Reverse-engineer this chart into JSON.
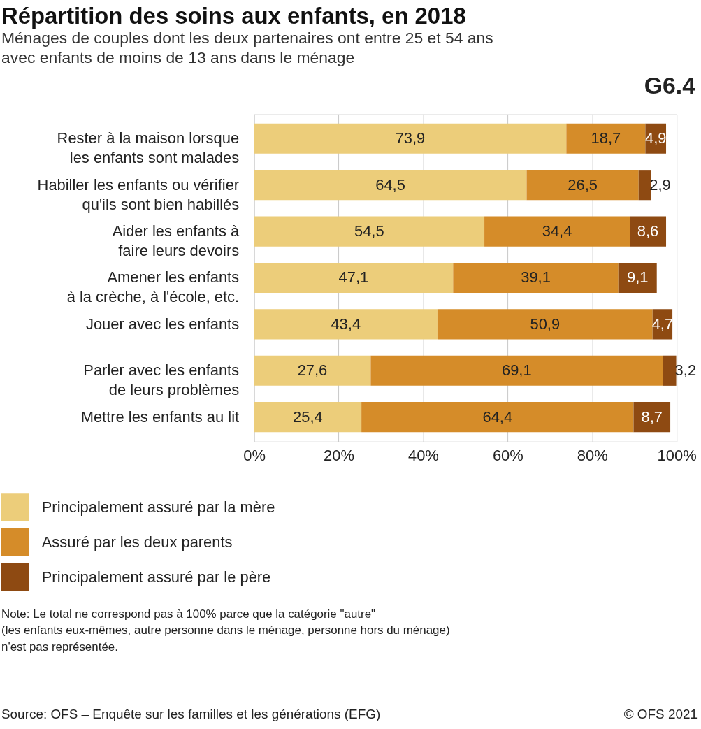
{
  "chart_data": {
    "type": "bar",
    "orientation": "horizontal",
    "stacked": true,
    "title": "Répartition des soins aux enfants, en 2018",
    "subtitle": "Ménages de couples dont les deux partenaires ont entre 25 et 54 ans\navec enfants de moins de 13 ans dans le ménage",
    "categories": [
      "Rester à la maison lorsque\nles enfants sont malades",
      "Habiller les enfants ou vérifier\nqu'ils sont bien habillés",
      "Aider les enfants à\nfaire leurs devoirs",
      "Amener les enfants\nà la crèche, à l'école, etc.",
      "Jouer avec les enfants",
      "Parler avec les enfants\nde leurs problèmes",
      "Mettre les enfants au lit"
    ],
    "series": [
      {
        "name": "Principalement assuré par la mère",
        "color": "#eccd7a",
        "values": [
          73.9,
          64.5,
          54.5,
          47.1,
          43.4,
          27.6,
          25.4
        ],
        "value_labels": [
          "73,9",
          "64,5",
          "54,5",
          "47,1",
          "43,4",
          "27,6",
          "25,4"
        ]
      },
      {
        "name": "Assuré par les deux parents",
        "color": "#d58c29",
        "values": [
          18.7,
          26.5,
          34.4,
          39.1,
          50.9,
          69.1,
          64.4
        ],
        "value_labels": [
          "18,7",
          "26,5",
          "34,4",
          "39,1",
          "50,9",
          "69,1",
          "64,4"
        ]
      },
      {
        "name": "Principalement assuré par le père",
        "color": "#8e4a12",
        "values": [
          4.9,
          2.9,
          8.6,
          9.1,
          4.7,
          3.2,
          8.7
        ],
        "value_labels": [
          "4,9",
          "2,9",
          "8,6",
          "9,1",
          "4,7",
          "3,2",
          "8,7"
        ]
      }
    ],
    "xlim": [
      0,
      100
    ],
    "xticks": [
      {
        "value": 0,
        "label": "0%"
      },
      {
        "value": 20,
        "label": "20%"
      },
      {
        "value": 40,
        "label": "40%"
      },
      {
        "value": 60,
        "label": "60%"
      },
      {
        "value": 80,
        "label": "80%"
      },
      {
        "value": 100,
        "label": "100%"
      }
    ],
    "grid": "x",
    "legend": "bottom",
    "annotations": [
      "G6.4",
      "Note: Le total ne correspond pas à 100% parce que la catégorie \"autre\"\n(les enfants eux-mêmes, autre personne dans le ménage, personne hors du ménage)\nn'est pas représentée.",
      "Source: OFS – Enquête sur les familles et les générations (EFG)",
      "© OFS 2021"
    ]
  }
}
